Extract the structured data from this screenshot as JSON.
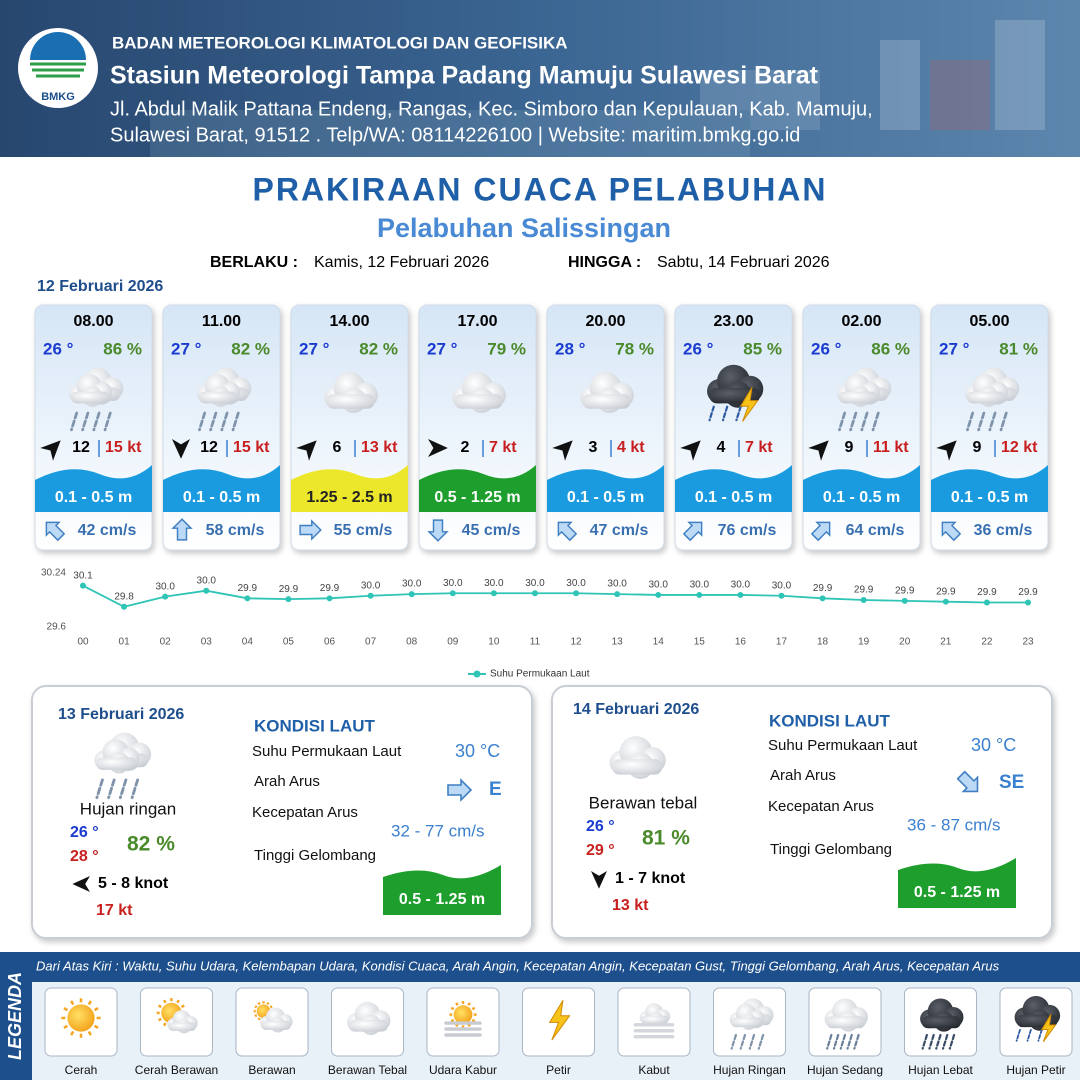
{
  "header": {
    "org": "BADAN METEOROLOGI KLIMATOLOGI DAN GEOFISIKA",
    "station": "Stasiun Meteorologi Tampa Padang Mamuju Sulawesi Barat",
    "address_1": "Jl. Abdul Malik Pattana Endeng, Rangas, Kec. Simboro dan Kepulauan, Kab. Mamuju,",
    "address_2": "Sulawesi Barat, 91512 . Telp/WA: 08114226100 | Website: maritim.bmkg.go.id",
    "logo_text": "BMKG"
  },
  "title": "PRAKIRAAN CUACA PELABUHAN",
  "subtitle": "Pelabuhan Salissingan",
  "validity": {
    "from_label": "BERLAKU :",
    "from": "Kamis, 12 Februari 2026",
    "to_label": "HINGGA :",
    "to": "Sabtu, 14 Februari 2026"
  },
  "day1": {
    "date": "12 Februari 2026",
    "cards": [
      {
        "time": "08.00",
        "temp": "26 °",
        "humidity": "86 %",
        "wind": "12",
        "gust": "15 kt",
        "wave": "0.1 - 0.5 m",
        "current": "42 cm/s"
      },
      {
        "time": "11.00",
        "temp": "27 °",
        "humidity": "82 %",
        "wind": "12",
        "gust": "15 kt",
        "wave": "0.1 - 0.5 m",
        "current": "58 cm/s"
      },
      {
        "time": "14.00",
        "temp": "27 °",
        "humidity": "82 %",
        "wind": "6",
        "gust": "13 kt",
        "wave": "1.25 - 2.5 m",
        "current": "55 cm/s"
      },
      {
        "time": "17.00",
        "temp": "27 °",
        "humidity": "79 %",
        "wind": "2",
        "gust": "7 kt",
        "wave": "0.5 - 1.25 m",
        "current": "45 cm/s"
      },
      {
        "time": "20.00",
        "temp": "28 °",
        "humidity": "78 %",
        "wind": "3",
        "gust": "4 kt",
        "wave": "0.1 - 0.5 m",
        "current": "47 cm/s"
      },
      {
        "time": "23.00",
        "temp": "26 °",
        "humidity": "85 %",
        "wind": "4",
        "gust": "7 kt",
        "wave": "0.1 - 0.5 m",
        "current": "76 cm/s"
      },
      {
        "time": "02.00",
        "temp": "26 °",
        "humidity": "86 %",
        "wind": "9",
        "gust": "11 kt",
        "wave": "0.1 - 0.5 m",
        "current": "64 cm/s"
      },
      {
        "time": "05.00",
        "temp": "27 °",
        "humidity": "81 %",
        "wind": "9",
        "gust": "12 kt",
        "wave": "0.1 - 0.5 m",
        "current": "36 cm/s"
      }
    ]
  },
  "sst_chart": {
    "type": "line",
    "color": "#2ec4b6",
    "categories": [
      "00",
      "01",
      "02",
      "03",
      "04",
      "05",
      "06",
      "07",
      "08",
      "09",
      "10",
      "11",
      "12",
      "13",
      "14",
      "15",
      "16",
      "17",
      "18",
      "19",
      "20",
      "21",
      "22",
      "23"
    ],
    "series": [
      {
        "name": "Suhu Permukaan Laut",
        "color": "#2ec4b6",
        "values": [
          30.09,
          29.84,
          29.96,
          30.03,
          29.94,
          29.93,
          29.94,
          29.97,
          29.99,
          30.0,
          30.0,
          30.0,
          30.0,
          29.99,
          29.98,
          29.98,
          29.98,
          29.97,
          29.94,
          29.92,
          29.91,
          29.9,
          29.89,
          29.89
        ],
        "value_labels": [
          "30.1",
          "29.8",
          "30.0",
          "30.0",
          "29.9",
          "29.9",
          "29.9",
          "30.0",
          "30.0",
          "30.0",
          "30.0",
          "30.0",
          "30.0",
          "30.0",
          "30.0",
          "30.0",
          "30.0",
          "30.0",
          "29.9",
          "29.9",
          "29.9",
          "29.9",
          "29.9",
          "29.9"
        ]
      }
    ],
    "ylim": [
      29.6,
      30.24
    ],
    "yticks": [
      29.6,
      30.24
    ],
    "legend": "bottom"
  },
  "day2": {
    "date": "13 Februari 2026",
    "condition": "Hujan ringan",
    "temp_min": "26 °",
    "temp_max": "28 °",
    "humidity": "82 %",
    "wind": "5 - 8 knot",
    "gust": "17 kt",
    "sea": {
      "title": "KONDISI LAUT",
      "sst_label": "Suhu Permukaan Laut",
      "sst": "30 °C",
      "dir_label": "Arah Arus",
      "dir": "E",
      "speed_label": "Kecepatan Arus",
      "speed": "32  - 77 cm/s",
      "wave_label": "Tinggi Gelombang",
      "wave": "0.5 - 1.25 m"
    }
  },
  "day3": {
    "date": "14 Februari 2026",
    "condition": "Berawan tebal",
    "temp_min": "26 °",
    "temp_max": "29 °",
    "humidity": "81 %",
    "wind": "1 - 7 knot",
    "gust": "13 kt",
    "sea": {
      "title": "KONDISI LAUT",
      "sst_label": "Suhu Permukaan Laut",
      "sst": "30 °C",
      "dir_label": "Arah Arus",
      "dir": "SE",
      "speed_label": "Kecepatan Arus",
      "speed": "36  - 87 cm/s",
      "wave_label": "Tinggi Gelombang",
      "wave": "0.5 - 1.25 m"
    }
  },
  "legend": {
    "title": "LEGENDA",
    "description": "Dari Atas Kiri : Waktu, Suhu Udara, Kelembapan Udara, Kondisi Cuaca, Arah Angin, Kecepatan Angin, Kecepatan Gust, Tinggi Gelombang, Arah Arus, Kecepatan Arus",
    "items": [
      "Cerah",
      "Cerah Berawan",
      "Berawan",
      "Berawan Tebal",
      "Udara Kabur",
      "Petir",
      "Kabut",
      "Hujan Ringan",
      "Hujan Sedang",
      "Hujan Lebat",
      "Hujan Petir"
    ]
  }
}
